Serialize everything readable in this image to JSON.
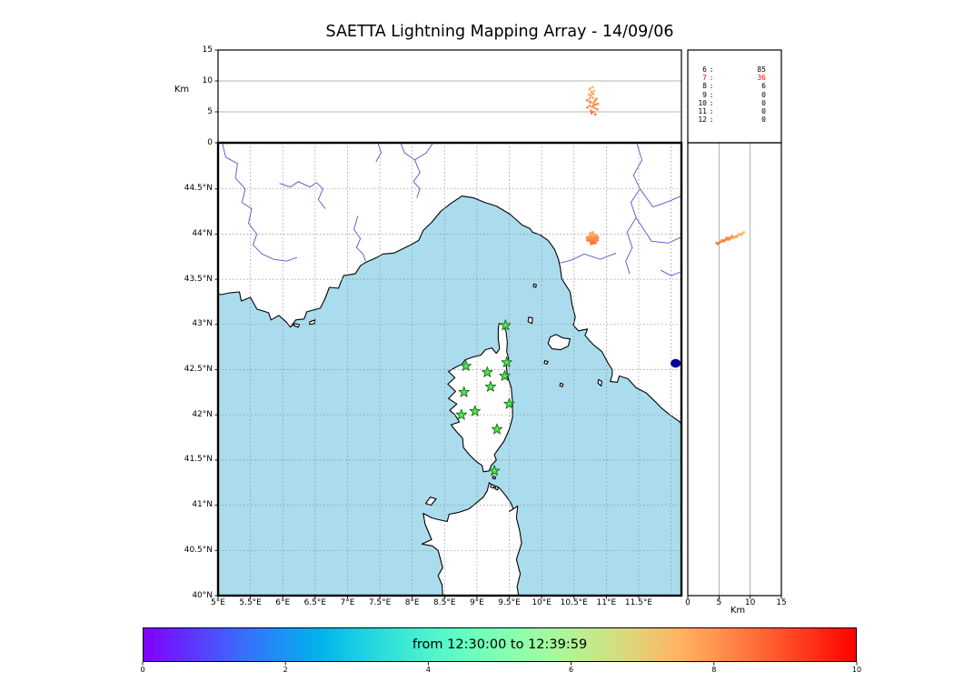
{
  "title": "SAETTA Lightning Mapping Array - 14/09/06",
  "axes": {
    "top_panel": {
      "ylabel": "Km",
      "yticks": [
        0,
        5,
        10,
        15
      ],
      "ylim": [
        0,
        15
      ],
      "grid": [
        5,
        10
      ]
    },
    "right_panel": {
      "xlabel": "Km",
      "xticks": [
        0,
        5,
        10,
        15
      ],
      "xlim": [
        0,
        15
      ],
      "grid": [
        5,
        10
      ]
    },
    "map": {
      "lon_ticks": [
        5,
        5.5,
        6,
        6.5,
        7,
        7.5,
        8,
        8.5,
        9,
        9.5,
        10,
        10.5,
        11,
        11.5
      ],
      "lon_tick_labels": [
        "5°E",
        "5.5°E",
        "6°E",
        "6.5°E",
        "7°E",
        "7.5°E",
        "8°E",
        "8.5°E",
        "9°E",
        "9.5°E",
        "10°E",
        "10.5°E",
        "11°E",
        "11.5°E"
      ],
      "lat_ticks": [
        44.5,
        44,
        43.5,
        43,
        42.5,
        42,
        41.5,
        41,
        40.5,
        40
      ],
      "lat_tick_labels": [
        "44.5°N",
        "44°N",
        "43.5°N",
        "43°N",
        "42.5°N",
        "42°N",
        "41.5°N",
        "41°N",
        "40.5°N",
        "40°N"
      ],
      "lon_range": [
        5,
        12.16
      ],
      "lat_range": [
        40,
        45.01
      ],
      "grid_step": 0.5
    }
  },
  "station_count_panel": {
    "rows": [
      {
        "label": "6",
        "value": "85",
        "highlight": false
      },
      {
        "label": "7",
        "value": "36",
        "highlight": true
      },
      {
        "label": "8",
        "value": "6",
        "highlight": false
      },
      {
        "label": "9",
        "value": "0",
        "highlight": false
      },
      {
        "label": "10",
        "value": "0",
        "highlight": false
      },
      {
        "label": "11",
        "value": "0",
        "highlight": false
      },
      {
        "label": "12",
        "value": "0",
        "highlight": false
      }
    ]
  },
  "colorbar": {
    "label": "from 12:30:00 to 12:39:59",
    "ticks": [
      0,
      2,
      4,
      6,
      8,
      10
    ],
    "range": [
      0,
      10
    ],
    "colormap": "rainbow"
  },
  "colors": {
    "sea": "#aadcee",
    "land": "#ffffff",
    "coastline": "#000000",
    "river": "#5555cc",
    "map_grid": "#8c8c8c",
    "panel_grid": "#9b9b9b",
    "station_fill": "#58e058",
    "station_edge": "#1b7a1b",
    "lake": "#000099",
    "highlight_text": "#ff0000"
  },
  "chart_data": {
    "type": "scatter",
    "description": "Lightning VHF sources colored by time (minutes after 12:30) plotted on a map of Corsica / Ligurian Sea with altitude-longitude (top) and altitude-latitude (right) projections, LMA station markers, and a histogram of contributing-station counts.",
    "time_window": {
      "start": "12:30:00",
      "end": "12:39:59"
    },
    "colorbar_minutes_range": [
      0,
      10
    ],
    "station_histogram": {
      "6": 85,
      "7": 36,
      "8": 6,
      "9": 0,
      "10": 0,
      "11": 0,
      "12": 0
    },
    "stations": [
      [
        9.44,
        42.99
      ],
      [
        9.46,
        42.58
      ],
      [
        8.83,
        42.54
      ],
      [
        9.16,
        42.47
      ],
      [
        9.43,
        42.43
      ],
      [
        8.8,
        42.25
      ],
      [
        9.21,
        42.31
      ],
      [
        9.5,
        42.12
      ],
      [
        8.76,
        42.0
      ],
      [
        8.97,
        42.04
      ],
      [
        9.31,
        41.84
      ],
      [
        9.27,
        41.38
      ]
    ],
    "flashes": [
      [
        10.74,
        43.99,
        8.6,
        7.6
      ],
      [
        10.77,
        44.0,
        8.2,
        7.7
      ],
      [
        10.8,
        43.98,
        7.9,
        7.8
      ],
      [
        10.76,
        43.97,
        7.6,
        7.9
      ],
      [
        10.79,
        43.96,
        7.3,
        7.9
      ],
      [
        10.83,
        43.97,
        7.0,
        8.0
      ],
      [
        10.72,
        43.95,
        6.8,
        8.0
      ],
      [
        10.76,
        43.94,
        6.6,
        8.1
      ],
      [
        10.8,
        43.94,
        6.4,
        8.1
      ],
      [
        10.84,
        43.95,
        6.2,
        8.2
      ],
      [
        10.74,
        43.93,
        6.0,
        8.2
      ],
      [
        10.78,
        43.92,
        5.8,
        8.3
      ],
      [
        10.82,
        43.92,
        5.6,
        8.3
      ],
      [
        10.86,
        43.93,
        5.4,
        8.4
      ],
      [
        10.76,
        43.91,
        5.2,
        8.4
      ],
      [
        10.8,
        43.9,
        5.0,
        8.5
      ],
      [
        10.73,
        43.97,
        7.8,
        7.8
      ],
      [
        10.81,
        44.0,
        8.4,
        7.6
      ],
      [
        10.85,
        43.98,
        7.1,
        8.0
      ],
      [
        10.7,
        43.96,
        6.9,
        8.1
      ],
      [
        10.78,
        43.98,
        8.0,
        7.7
      ],
      [
        10.75,
        43.95,
        6.5,
        8.2
      ],
      [
        10.82,
        43.96,
        6.7,
        8.1
      ],
      [
        10.79,
        43.93,
        5.9,
        8.3
      ],
      [
        10.87,
        43.96,
        6.3,
        8.2
      ],
      [
        10.71,
        43.93,
        5.7,
        8.4
      ],
      [
        10.77,
        43.89,
        4.8,
        8.6
      ],
      [
        10.83,
        43.9,
        4.6,
        8.6
      ],
      [
        10.75,
        44.01,
        8.8,
        7.5
      ],
      [
        10.81,
        43.95,
        6.1,
        8.2
      ],
      [
        10.79,
        44.02,
        9.0,
        7.5
      ],
      [
        10.74,
        43.96,
        7.2,
        8.0
      ]
    ]
  }
}
